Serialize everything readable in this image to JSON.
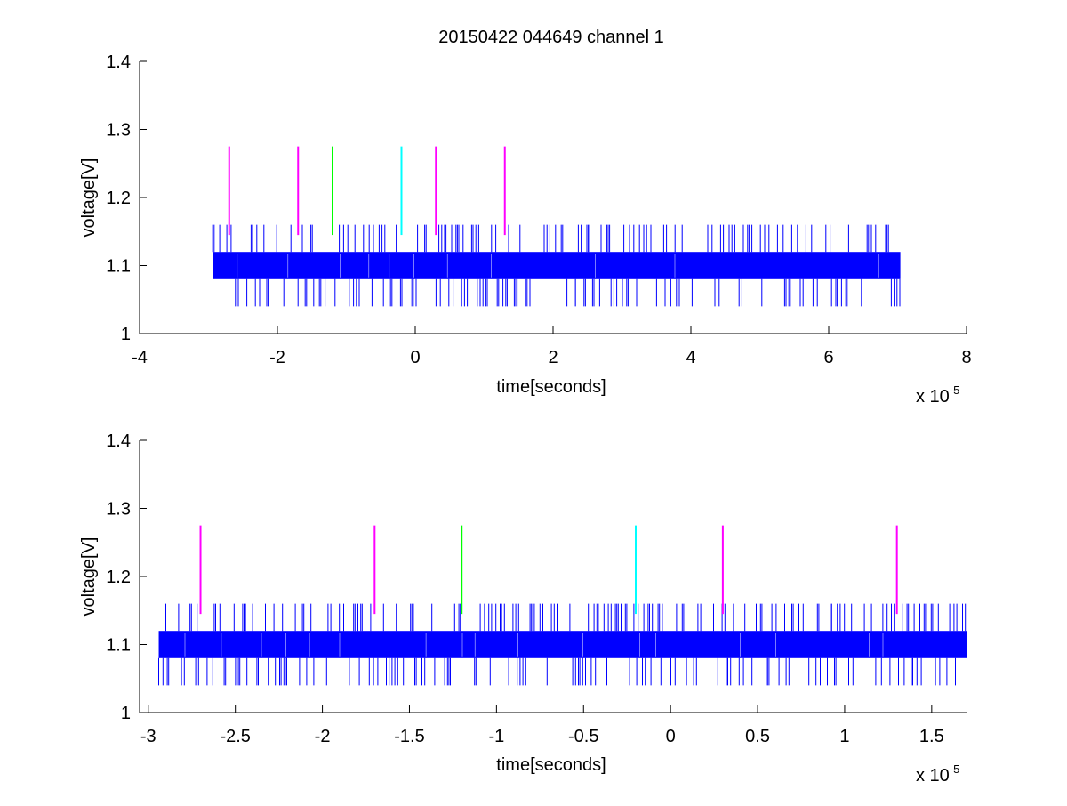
{
  "figure_title": "20150422 044649 channel 1",
  "chart_data": [
    {
      "type": "line",
      "title": "20150422 044649 channel 1",
      "xlabel": "time[seconds]",
      "ylabel": "voltage[V]",
      "x_multiplier_label": "x 10",
      "x_multiplier_exponent": "-5",
      "xlim": [
        -4e-05,
        8e-05
      ],
      "ylim": [
        1.0,
        1.4
      ],
      "xticks": [
        -4e-05,
        -2e-05,
        0,
        2e-05,
        4e-05,
        6e-05,
        8e-05
      ],
      "xtick_labels": [
        "-4",
        "-2",
        "0",
        "2",
        "4",
        "6",
        "8"
      ],
      "yticks": [
        1.0,
        1.1,
        1.2,
        1.3,
        1.4
      ],
      "ytick_labels": [
        "1",
        "1.1",
        "1.2",
        "1.3",
        "1.4"
      ],
      "grid": false,
      "series": [
        {
          "color": "#0000ff",
          "x_range": [
            -2.94e-05,
            7.04e-05
          ],
          "levels": [
            1.04,
            1.08,
            1.12,
            1.16
          ],
          "baseline_band": [
            1.08,
            1.12
          ]
        }
      ],
      "markers": [
        {
          "x": -2.7e-05,
          "y_range": [
            1.145,
            1.275
          ],
          "color": "#ff00ff"
        },
        {
          "x": -1.7e-05,
          "y_range": [
            1.145,
            1.275
          ],
          "color": "#ff00ff"
        },
        {
          "x": -1.2e-05,
          "y_range": [
            1.145,
            1.275
          ],
          "color": "#00ff00"
        },
        {
          "x": -2e-06,
          "y_range": [
            1.145,
            1.275
          ],
          "color": "#00ffff"
        },
        {
          "x": 3e-06,
          "y_range": [
            1.145,
            1.275
          ],
          "color": "#ff00ff"
        },
        {
          "x": 1.3e-05,
          "y_range": [
            1.145,
            1.275
          ],
          "color": "#ff00ff"
        }
      ]
    },
    {
      "type": "line",
      "title": "",
      "xlabel": "time[seconds]",
      "ylabel": "voltage[V]",
      "x_multiplier_label": "x 10",
      "x_multiplier_exponent": "-5",
      "xlim": [
        -3.05e-05,
        1.7e-05
      ],
      "ylim": [
        1.0,
        1.4
      ],
      "xticks": [
        -3e-05,
        -2.5e-05,
        -2e-05,
        -1.5e-05,
        -1e-05,
        -5e-06,
        0,
        5e-06,
        1e-05,
        1.5e-05
      ],
      "xtick_labels": [
        "-3",
        "-2.5",
        "-2",
        "-1.5",
        "-1",
        "-0.5",
        "0",
        "0.5",
        "1",
        "1.5"
      ],
      "yticks": [
        1.0,
        1.1,
        1.2,
        1.3,
        1.4
      ],
      "ytick_labels": [
        "1",
        "1.1",
        "1.2",
        "1.3",
        "1.4"
      ],
      "grid": false,
      "series": [
        {
          "color": "#0000ff",
          "x_range": [
            -2.94e-05,
            1.7e-05
          ],
          "levels": [
            1.04,
            1.08,
            1.12,
            1.16
          ],
          "baseline_band": [
            1.08,
            1.12
          ]
        }
      ],
      "markers": [
        {
          "x": -2.7e-05,
          "y_range": [
            1.145,
            1.275
          ],
          "color": "#ff00ff"
        },
        {
          "x": -1.7e-05,
          "y_range": [
            1.145,
            1.275
          ],
          "color": "#ff00ff"
        },
        {
          "x": -1.2e-05,
          "y_range": [
            1.145,
            1.275
          ],
          "color": "#00ff00"
        },
        {
          "x": -2e-06,
          "y_range": [
            1.145,
            1.275
          ],
          "color": "#00ffff"
        },
        {
          "x": 3e-06,
          "y_range": [
            1.145,
            1.275
          ],
          "color": "#ff00ff"
        },
        {
          "x": 1.3e-05,
          "y_range": [
            1.145,
            1.275
          ],
          "color": "#ff00ff"
        }
      ]
    }
  ]
}
